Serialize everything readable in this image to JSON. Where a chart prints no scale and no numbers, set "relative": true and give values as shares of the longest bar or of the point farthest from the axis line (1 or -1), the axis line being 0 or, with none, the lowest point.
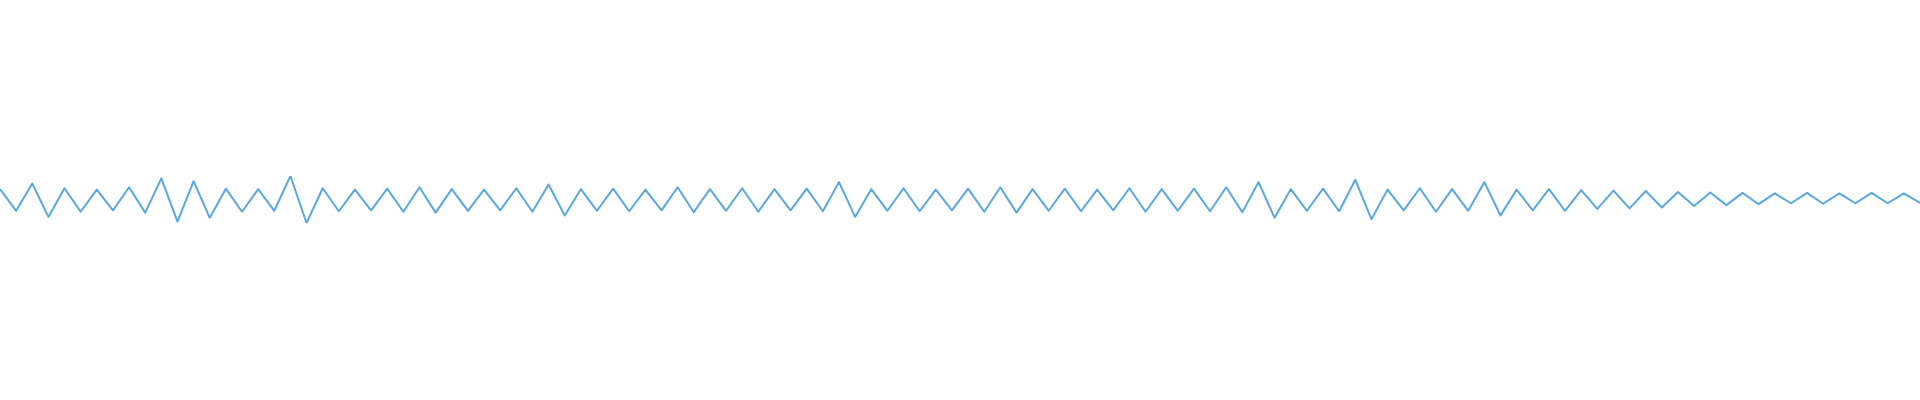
{
  "chart_data": {
    "type": "line",
    "relative": true,
    "legend": false,
    "marker": "none",
    "categories": [
      null,
      null,
      null,
      null,
      null,
      null,
      null,
      null,
      null,
      null,
      null,
      null,
      null,
      null,
      null,
      null,
      null,
      null,
      null,
      null,
      null,
      null,
      null,
      null,
      null,
      null,
      null,
      null,
      null,
      null,
      null,
      null,
      null,
      null,
      null,
      null,
      null,
      null,
      null,
      null,
      null,
      null,
      null,
      null,
      null,
      null,
      null,
      null,
      null,
      null,
      null,
      null,
      null,
      null,
      null,
      null,
      null,
      null,
      null,
      null,
      null,
      null,
      null,
      null,
      null,
      null,
      null,
      null,
      null,
      null,
      null,
      null,
      null,
      null,
      null,
      null,
      null,
      null,
      null,
      null,
      null,
      null,
      null,
      null,
      null,
      null,
      null,
      null,
      null,
      null,
      null,
      null,
      null,
      null,
      null,
      null,
      null,
      null,
      null,
      null,
      null,
      null,
      null,
      null,
      null,
      null,
      null,
      null,
      null,
      null,
      null,
      null,
      null,
      null,
      null,
      null,
      null,
      null,
      null,
      null
    ],
    "series": [
      {
        "color": "#5ba8e0",
        "values": [
          0.72,
          0.26,
          0.84,
          0.13,
          0.74,
          0.24,
          0.71,
          0.27,
          0.76,
          0.22,
          0.95,
          0.03,
          0.89,
          0.11,
          0.73,
          0.24,
          0.72,
          0.26,
          1.0,
          0.0,
          0.74,
          0.25,
          0.71,
          0.27,
          0.73,
          0.24,
          0.76,
          0.22,
          0.72,
          0.26,
          0.71,
          0.27,
          0.74,
          0.24,
          0.82,
          0.16,
          0.72,
          0.26,
          0.73,
          0.25,
          0.71,
          0.27,
          0.76,
          0.23,
          0.72,
          0.26,
          0.74,
          0.24,
          0.72,
          0.27,
          0.73,
          0.25,
          0.87,
          0.13,
          0.72,
          0.26,
          0.74,
          0.25,
          0.71,
          0.27,
          0.73,
          0.24,
          0.76,
          0.22,
          0.72,
          0.26,
          0.73,
          0.25,
          0.71,
          0.27,
          0.74,
          0.24,
          0.72,
          0.26,
          0.73,
          0.25,
          0.76,
          0.23,
          0.87,
          0.11,
          0.72,
          0.26,
          0.73,
          0.25,
          0.92,
          0.08,
          0.71,
          0.27,
          0.74,
          0.24,
          0.72,
          0.26,
          0.87,
          0.16,
          0.71,
          0.27,
          0.72,
          0.26,
          0.7,
          0.3,
          0.69,
          0.31,
          0.68,
          0.33,
          0.66,
          0.36,
          0.65,
          0.38,
          0.64,
          0.4,
          0.63,
          0.42,
          0.64,
          0.41,
          0.63,
          0.42,
          0.64,
          0.42,
          0.63,
          0.43
        ]
      }
    ]
  }
}
